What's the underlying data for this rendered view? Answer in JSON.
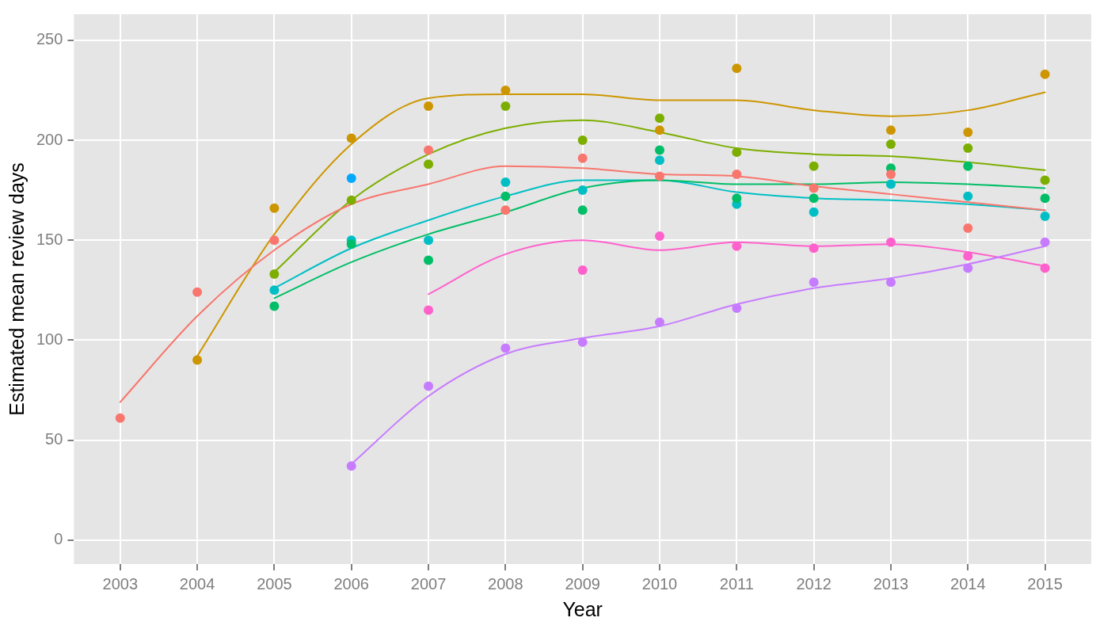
{
  "chart_data": {
    "type": "scatter",
    "xlabel": "Year",
    "ylabel": "Estimated mean review days",
    "xlim": [
      2002.4,
      2015.6
    ],
    "ylim": [
      -12,
      263
    ],
    "xticks": [
      2003,
      2004,
      2005,
      2006,
      2007,
      2008,
      2009,
      2010,
      2011,
      2012,
      2013,
      2014,
      2015
    ],
    "yticks": [
      0,
      50,
      100,
      150,
      200,
      250
    ],
    "grid": true,
    "legend": false,
    "marker": "circle",
    "series": [
      {
        "type": "scatter",
        "color": "#f8766d",
        "x": [
          2003,
          2004,
          2005,
          2007,
          2008,
          2009,
          2010,
          2011,
          2012,
          2013,
          2014
        ],
        "values": [
          61,
          124,
          150,
          195,
          165,
          191,
          182,
          183,
          176,
          183,
          156
        ]
      },
      {
        "type": "scatter",
        "color": "#cd9600",
        "x": [
          2004,
          2005,
          2006,
          2007,
          2008,
          2010,
          2011,
          2013,
          2014,
          2015
        ],
        "values": [
          90,
          166,
          201,
          217,
          225,
          205,
          236,
          205,
          204,
          233
        ]
      },
      {
        "type": "scatter",
        "color": "#7cae00",
        "x": [
          2005,
          2006,
          2007,
          2008,
          2009,
          2010,
          2011,
          2012,
          2013,
          2014,
          2015
        ],
        "values": [
          133,
          170,
          188,
          217,
          200,
          211,
          194,
          187,
          198,
          196,
          180
        ]
      },
      {
        "type": "scatter",
        "color": "#00be67",
        "x": [
          2005,
          2006,
          2007,
          2008,
          2009,
          2010,
          2011,
          2012,
          2013,
          2014,
          2015
        ],
        "values": [
          117,
          148,
          140,
          172,
          165,
          195,
          171,
          171,
          186,
          187,
          171
        ]
      },
      {
        "type": "scatter",
        "color": "#00bfc4",
        "x": [
          2005,
          2006,
          2007,
          2008,
          2009,
          2010,
          2011,
          2012,
          2013,
          2014,
          2015
        ],
        "values": [
          125,
          150,
          150,
          179,
          175,
          190,
          168,
          164,
          178,
          172,
          162
        ]
      },
      {
        "type": "scatter",
        "color": "#00a9ff",
        "x": [
          2006
        ],
        "values": [
          181
        ]
      },
      {
        "type": "scatter",
        "color": "#c77cff",
        "x": [
          2006,
          2007,
          2008,
          2009,
          2010,
          2011,
          2012,
          2013,
          2014,
          2015
        ],
        "values": [
          37,
          77,
          96,
          99,
          109,
          116,
          129,
          129,
          136,
          149
        ]
      },
      {
        "type": "scatter",
        "color": "#ff61cc",
        "x": [
          2007,
          2009,
          2010,
          2011,
          2012,
          2013,
          2014,
          2015
        ],
        "values": [
          115,
          135,
          152,
          147,
          146,
          149,
          142,
          136
        ]
      },
      {
        "type": "line",
        "marker": "none",
        "line_style": "solid",
        "color": "#f8766d",
        "x": [
          2003,
          2004,
          2005,
          2006,
          2007,
          2008,
          2009,
          2010,
          2011,
          2012,
          2013,
          2014,
          2015
        ],
        "values": [
          69,
          112,
          145,
          168,
          178,
          187,
          186,
          183,
          182,
          177,
          173,
          169,
          165
        ]
      },
      {
        "type": "line",
        "marker": "none",
        "line_style": "solid",
        "color": "#cd9600",
        "x": [
          2004,
          2005,
          2006,
          2007,
          2008,
          2009,
          2010,
          2011,
          2012,
          2013,
          2014,
          2015
        ],
        "values": [
          92,
          153,
          198,
          221,
          223,
          223,
          220,
          220,
          215,
          212,
          215,
          224
        ]
      },
      {
        "type": "line",
        "marker": "none",
        "line_style": "solid",
        "color": "#7cae00",
        "x": [
          2005,
          2006,
          2007,
          2008,
          2009,
          2010,
          2011,
          2012,
          2013,
          2014,
          2015
        ],
        "values": [
          134,
          170,
          193,
          206,
          210,
          204,
          196,
          193,
          192,
          189,
          185
        ]
      },
      {
        "type": "line",
        "marker": "none",
        "line_style": "solid",
        "color": "#00be67",
        "x": [
          2005,
          2006,
          2007,
          2008,
          2009,
          2010,
          2011,
          2012,
          2013,
          2014,
          2015
        ],
        "values": [
          121,
          139,
          153,
          164,
          176,
          180,
          178,
          178,
          179,
          178,
          176
        ]
      },
      {
        "type": "line",
        "marker": "none",
        "line_style": "solid",
        "color": "#00bfc4",
        "x": [
          2005,
          2006,
          2007,
          2008,
          2009,
          2010,
          2011,
          2012,
          2013,
          2014,
          2015
        ],
        "values": [
          126,
          146,
          160,
          172,
          180,
          180,
          174,
          171,
          170,
          168,
          165
        ]
      },
      {
        "type": "line",
        "marker": "none",
        "line_style": "solid",
        "color": "#c77cff",
        "x": [
          2006,
          2007,
          2008,
          2009,
          2010,
          2011,
          2012,
          2013,
          2014,
          2015
        ],
        "values": [
          38,
          72,
          93,
          101,
          107,
          118,
          126,
          131,
          138,
          147
        ]
      },
      {
        "type": "line",
        "marker": "none",
        "line_style": "solid",
        "color": "#ff61cc",
        "x": [
          2007,
          2008,
          2009,
          2010,
          2011,
          2012,
          2013,
          2014,
          2015
        ],
        "values": [
          123,
          143,
          150,
          145,
          149,
          147,
          148,
          144,
          137
        ]
      }
    ]
  }
}
